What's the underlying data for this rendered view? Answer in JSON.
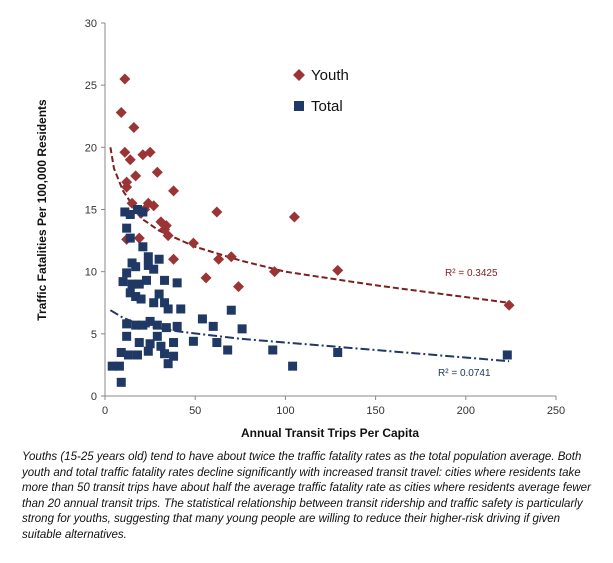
{
  "chart_data": {
    "type": "scatter",
    "title": "",
    "xlabel": "Annual Transit Trips Per Capita",
    "ylabel": "Traffic Fatalities Per 100,000 Residents",
    "xlim": [
      0,
      250
    ],
    "ylim": [
      0,
      30
    ],
    "xticks": [
      "0",
      "50",
      "100",
      "150",
      "200",
      "250"
    ],
    "yticks": [
      "0",
      "5",
      "10",
      "15",
      "20",
      "25",
      "30"
    ],
    "grid": false,
    "legend_position": "top-right",
    "series": [
      {
        "name": "Youth",
        "marker": "diamond",
        "color": "#9b3535",
        "points": [
          [
            11,
            25.5
          ],
          [
            9,
            22.8
          ],
          [
            16,
            21.6
          ],
          [
            11,
            19.6
          ],
          [
            21,
            19.4
          ],
          [
            25,
            19.6
          ],
          [
            14,
            19.0
          ],
          [
            17,
            17.7
          ],
          [
            29,
            18.0
          ],
          [
            12,
            17.2
          ],
          [
            12,
            16.8
          ],
          [
            38,
            16.5
          ],
          [
            15,
            15.5
          ],
          [
            24,
            15.5
          ],
          [
            27,
            15.3
          ],
          [
            22,
            15.0
          ],
          [
            20,
            14.7
          ],
          [
            31,
            14.0
          ],
          [
            34,
            13.7
          ],
          [
            33,
            13.4
          ],
          [
            35,
            12.9
          ],
          [
            12,
            12.6
          ],
          [
            19,
            12.7
          ],
          [
            62,
            14.8
          ],
          [
            105,
            14.4
          ],
          [
            49,
            12.3
          ],
          [
            38,
            11.0
          ],
          [
            63,
            11.0
          ],
          [
            70,
            11.2
          ],
          [
            56,
            9.5
          ],
          [
            74,
            8.8
          ],
          [
            94,
            10.0
          ],
          [
            129,
            10.1
          ],
          [
            224,
            7.3
          ]
        ]
      },
      {
        "name": "Total",
        "marker": "square",
        "color": "#1f3864",
        "points": [
          [
            11,
            14.8
          ],
          [
            14,
            14.6
          ],
          [
            18,
            15.0
          ],
          [
            21,
            14.8
          ],
          [
            12,
            13.5
          ],
          [
            14,
            12.7
          ],
          [
            21,
            12.0
          ],
          [
            24,
            11.2
          ],
          [
            30,
            11.0
          ],
          [
            15,
            10.7
          ],
          [
            17,
            10.4
          ],
          [
            12,
            9.9
          ],
          [
            24,
            10.5
          ],
          [
            27,
            10.2
          ],
          [
            15,
            9.0
          ],
          [
            19,
            9.0
          ],
          [
            23,
            9.3
          ],
          [
            33,
            9.3
          ],
          [
            40,
            9.1
          ],
          [
            10,
            9.2
          ],
          [
            14,
            8.3
          ],
          [
            17,
            8.0
          ],
          [
            20,
            7.8
          ],
          [
            27,
            7.5
          ],
          [
            30,
            8.2
          ],
          [
            33,
            7.5
          ],
          [
            35,
            7.0
          ],
          [
            42,
            7.0
          ],
          [
            12,
            5.8
          ],
          [
            17,
            5.7
          ],
          [
            21,
            5.7
          ],
          [
            25,
            6.0
          ],
          [
            29,
            5.7
          ],
          [
            34,
            5.5
          ],
          [
            40,
            5.6
          ],
          [
            54,
            6.2
          ],
          [
            60,
            5.6
          ],
          [
            70,
            6.9
          ],
          [
            76,
            5.4
          ],
          [
            12,
            4.8
          ],
          [
            19,
            4.3
          ],
          [
            25,
            4.2
          ],
          [
            29,
            4.8
          ],
          [
            31,
            4.0
          ],
          [
            38,
            4.3
          ],
          [
            49,
            4.4
          ],
          [
            62,
            4.3
          ],
          [
            9,
            3.5
          ],
          [
            13,
            3.3
          ],
          [
            18,
            3.3
          ],
          [
            24,
            3.6
          ],
          [
            33,
            3.4
          ],
          [
            38,
            3.2
          ],
          [
            68,
            3.7
          ],
          [
            93,
            3.7
          ],
          [
            129,
            3.5
          ],
          [
            223,
            3.3
          ],
          [
            4,
            2.4
          ],
          [
            8,
            2.4
          ],
          [
            35,
            2.6
          ],
          [
            104,
            2.4
          ],
          [
            9,
            1.1
          ]
        ]
      }
    ],
    "trendlines": [
      {
        "series": "Youth",
        "type": "logarithmic",
        "color": "#7f1f1f",
        "dash": "dashed",
        "points": [
          [
            3,
            20.0
          ],
          [
            5,
            18.3
          ],
          [
            10,
            16.5
          ],
          [
            20,
            14.3
          ],
          [
            30,
            13.3
          ],
          [
            50,
            12.0
          ],
          [
            75,
            10.9
          ],
          [
            100,
            10.0
          ],
          [
            150,
            8.9
          ],
          [
            224,
            7.5
          ]
        ],
        "label": "R² = 0.3425"
      },
      {
        "series": "Total",
        "type": "logarithmic",
        "color": "#1f3864",
        "dash": "dash-dot",
        "points": [
          [
            3,
            6.9
          ],
          [
            10,
            6.3
          ],
          [
            20,
            5.7
          ],
          [
            40,
            5.2
          ],
          [
            75,
            4.6
          ],
          [
            100,
            4.3
          ],
          [
            150,
            3.7
          ],
          [
            224,
            2.8
          ]
        ],
        "label": "R² = 0.0741"
      }
    ]
  },
  "caption": "Youths (15-25 years old) tend to have about twice the traffic fatality rates as the total population average. Both youth and total traffic fatality rates decline significantly with increased transit travel: cities where residents take more than 50 transit trips have about half the average traffic fatality rate as cities where residents average fewer than 20 annual transit trips. The statistical relationship between transit ridership and traffic safety is particularly strong for youths, suggesting that many young people are willing to reduce their higher-risk driving if given suitable alternatives."
}
